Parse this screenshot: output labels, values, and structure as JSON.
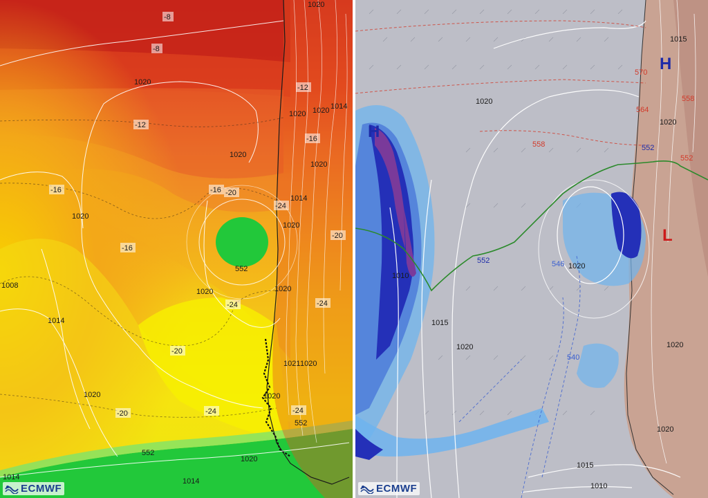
{
  "left_map": {
    "logo_text": "ECMWF",
    "temperature_labels": [
      "-8",
      "-8",
      "-12",
      "-12",
      "-16",
      "-16",
      "-16",
      "-16",
      "-20",
      "-20",
      "-20",
      "-20",
      "-24",
      "-24",
      "-24",
      "-24",
      "-24"
    ],
    "pressure_labels": [
      "1020",
      "1020",
      "1020",
      "1020",
      "1020",
      "1014",
      "1020",
      "1020",
      "1020",
      "1020",
      "1020",
      "1020",
      "1020",
      "1020",
      "1008",
      "1014",
      "1014",
      "1014",
      "1020",
      "1021"
    ],
    "height_labels": [
      "552",
      "552",
      "552"
    ],
    "colors": {
      "hot": "#cc2a1e",
      "orange": "#e8642a",
      "yellow": "#f5f000",
      "green": "#22c83a"
    }
  },
  "right_map": {
    "logo_text": "ECMWF",
    "pressure_labels": [
      "1020",
      "1020",
      "1020",
      "1015",
      "1015",
      "1010",
      "1010",
      "1015",
      "1020",
      "1020",
      "1020"
    ],
    "height_labels": [
      "570",
      "564",
      "558",
      "552",
      "552",
      "546",
      "540",
      "552",
      "558"
    ],
    "pressure_centers": [
      {
        "letter": "H",
        "color": "#1d2aa8"
      },
      {
        "letter": "H",
        "color": "#1d2aa8"
      },
      {
        "letter": "L",
        "color": "#cc1a1a"
      }
    ],
    "colors": {
      "background": "#bdbec7",
      "precip_light": "#6fb4ee",
      "precip_heavy": "#2430b8",
      "precip_extreme": "#7a3a9a",
      "land": "#c9a393",
      "isoline_552": "#2b8a2b",
      "height_red": "#d23a2a",
      "height_blue": "#3a5fd0"
    }
  }
}
